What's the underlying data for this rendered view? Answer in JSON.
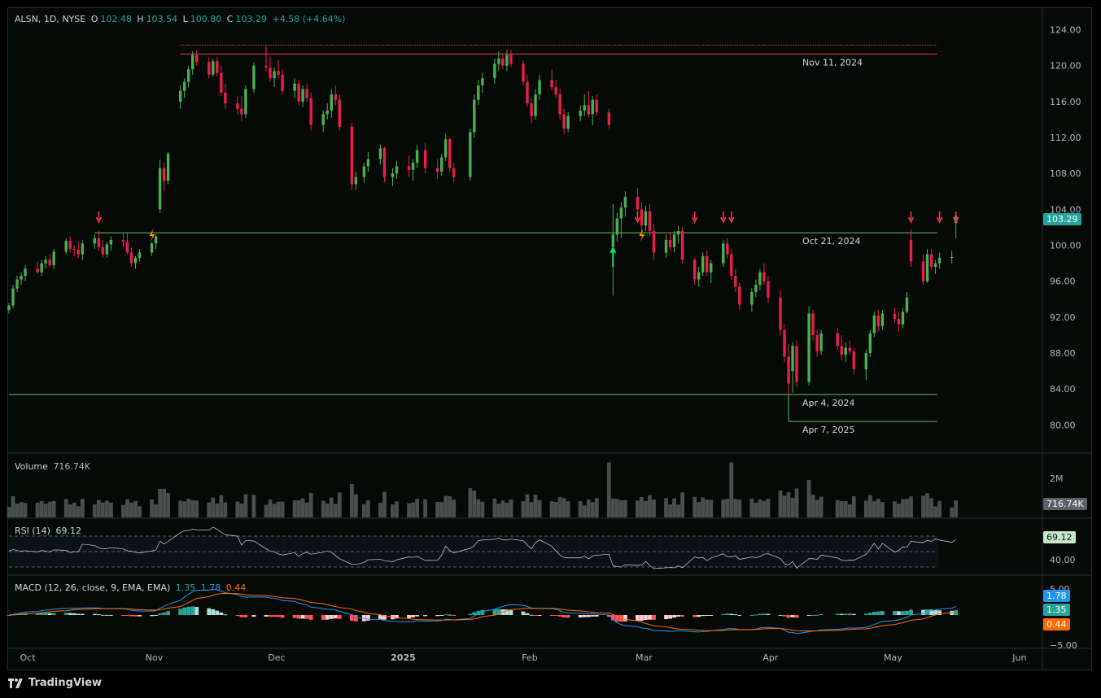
{
  "header": {
    "symbol": "ALSN, 1D, NYSE",
    "o_label": "O",
    "o": "102.48",
    "h_label": "H",
    "h": "103.54",
    "l_label": "L",
    "l": "100.80",
    "c_label": "C",
    "c": "103.29",
    "change": "+4.58 (+4.64%)"
  },
  "price_axis": {
    "ticks": [
      "124.00",
      "120.00",
      "116.00",
      "112.00",
      "108.00",
      "104.00",
      "100.00",
      "96.00",
      "92.00",
      "88.00",
      "84.00",
      "80.00"
    ],
    "current_price": "103.29",
    "current_color": "#26a69a"
  },
  "time_axis": {
    "labels": [
      "Oct",
      "Nov",
      "Dec",
      "2025",
      "Feb",
      "Mar",
      "Apr",
      "May",
      "Jun"
    ]
  },
  "levels": [
    {
      "price": 121.3,
      "label": "Nov 11, 2024",
      "color": "#f23645"
    },
    {
      "price": 101.4,
      "label": "Oct 21, 2024",
      "color": "#66bb6a"
    },
    {
      "price": 83.4,
      "label": "Apr 4, 2024",
      "color": "#66bb6a"
    },
    {
      "price": 80.4,
      "label": "Apr 7, 2025",
      "color": "#66bb6a"
    }
  ],
  "volume": {
    "title": "Volume",
    "value": "716.74K",
    "axis_label": "2M",
    "tag": "716.74K"
  },
  "rsi": {
    "title": "RSI (14)",
    "value": "69.12",
    "tag": "69.12",
    "axis_label": "40.00"
  },
  "macd": {
    "title": "MACD (12, 26, close, 9, EMA, EMA)",
    "hist": "1.35",
    "macd": "1.78",
    "signal": "0.44",
    "axis_top": "5.00",
    "axis_bottom": "−5.00",
    "tag_macd": "1.78",
    "tag_hist": "1.35",
    "tag_signal": "0.44"
  },
  "footer": {
    "brand": "TradingView",
    "logo_icon": "tradingview-logo-icon"
  },
  "colors": {
    "up": "#26a69a",
    "down": "#ef5350",
    "bull": "#4caf50",
    "bear": "#e91e4d"
  },
  "chart_data": {
    "type": "candlestick",
    "symbol": "ALSN",
    "interval": "1D",
    "ylim": [
      77.5,
      125.5
    ],
    "x_range": [
      "2024-09-30",
      "2025-06-10"
    ],
    "candles": [
      [
        "2024-09-30",
        92.8,
        93.6,
        92.4,
        93.3
      ],
      [
        "2024-10-01",
        93.3,
        95.6,
        93.0,
        95.2
      ],
      [
        "2024-10-02",
        95.2,
        96.6,
        94.8,
        96.2
      ],
      [
        "2024-10-03",
        96.2,
        97.0,
        95.6,
        96.6
      ],
      [
        "2024-10-04",
        96.6,
        97.8,
        96.0,
        97.4
      ],
      [
        "2024-10-07",
        97.4,
        98.2,
        96.8,
        97.0
      ],
      [
        "2024-10-08",
        97.0,
        98.4,
        96.6,
        98.0
      ],
      [
        "2024-10-09",
        98.0,
        98.8,
        97.4,
        98.4
      ],
      [
        "2024-10-10",
        98.4,
        99.0,
        97.6,
        97.8
      ],
      [
        "2024-10-11",
        97.8,
        99.6,
        97.4,
        99.3
      ],
      [
        "2024-10-14",
        99.3,
        100.8,
        99.0,
        100.5
      ],
      [
        "2024-10-15",
        100.5,
        101.0,
        99.2,
        99.6
      ],
      [
        "2024-10-16",
        99.6,
        100.0,
        98.8,
        99.5
      ],
      [
        "2024-10-17",
        99.5,
        100.4,
        98.6,
        99.0
      ],
      [
        "2024-10-18",
        99.0,
        100.6,
        98.4,
        100.2
      ],
      [
        "2024-10-21",
        100.2,
        101.2,
        99.6,
        100.8
      ],
      [
        "2024-10-22",
        100.8,
        101.6,
        99.4,
        99.8
      ],
      [
        "2024-10-23",
        99.8,
        100.6,
        98.6,
        99.0
      ],
      [
        "2024-10-24",
        99.0,
        100.4,
        98.6,
        100.1
      ],
      [
        "2024-10-25",
        100.1,
        101.0,
        99.4,
        100.6
      ],
      [
        "2024-10-28",
        100.6,
        101.4,
        99.8,
        100.4
      ],
      [
        "2024-10-29",
        100.4,
        101.5,
        99.0,
        99.2
      ],
      [
        "2024-10-30",
        99.2,
        99.8,
        97.6,
        98.0
      ],
      [
        "2024-10-31",
        98.0,
        98.8,
        97.4,
        98.6
      ],
      [
        "2024-11-01",
        98.6,
        99.6,
        98.2,
        99.2
      ],
      [
        "2024-11-04",
        99.2,
        100.4,
        98.8,
        100.2
      ],
      [
        "2024-11-05",
        100.2,
        101.2,
        99.6,
        101.0
      ],
      [
        "2024-11-06",
        104.0,
        109.5,
        103.6,
        108.6
      ],
      [
        "2024-11-07",
        108.6,
        109.2,
        106.0,
        107.2
      ],
      [
        "2024-11-08",
        107.2,
        110.4,
        106.8,
        110.2
      ],
      [
        "2024-11-11",
        116.0,
        117.8,
        115.2,
        117.2
      ],
      [
        "2024-11-12",
        117.2,
        118.6,
        116.4,
        118.2
      ],
      [
        "2024-11-13",
        118.2,
        120.0,
        117.6,
        119.6
      ],
      [
        "2024-11-14",
        119.6,
        121.6,
        119.0,
        121.2
      ],
      [
        "2024-11-15",
        121.2,
        121.8,
        120.0,
        120.4
      ],
      [
        "2024-11-18",
        120.4,
        121.0,
        118.6,
        119.0
      ],
      [
        "2024-11-19",
        119.0,
        120.8,
        118.8,
        120.5
      ],
      [
        "2024-11-20",
        120.5,
        121.0,
        118.8,
        119.2
      ],
      [
        "2024-11-21",
        119.2,
        120.0,
        116.6,
        117.0
      ],
      [
        "2024-11-22",
        117.0,
        118.0,
        115.2,
        115.8
      ],
      [
        "2024-11-25",
        115.8,
        116.6,
        114.6,
        115.2
      ],
      [
        "2024-11-26",
        115.2,
        116.6,
        113.8,
        114.6
      ],
      [
        "2024-11-27",
        114.6,
        117.8,
        114.2,
        117.4
      ],
      [
        "2024-11-29",
        117.4,
        120.4,
        117.0,
        120.0
      ],
      [
        "2024-12-02",
        120.0,
        122.2,
        119.4,
        119.8
      ],
      [
        "2024-12-03",
        119.8,
        121.0,
        118.2,
        118.6
      ],
      [
        "2024-12-04",
        118.6,
        119.8,
        117.6,
        119.4
      ],
      [
        "2024-12-05",
        119.4,
        120.6,
        118.6,
        119.0
      ],
      [
        "2024-12-06",
        119.0,
        119.6,
        116.8,
        117.2
      ],
      [
        "2024-12-09",
        117.2,
        118.6,
        116.4,
        118.0
      ],
      [
        "2024-12-10",
        118.0,
        118.4,
        115.6,
        116.0
      ],
      [
        "2024-12-11",
        116.0,
        117.8,
        115.4,
        117.4
      ],
      [
        "2024-12-12",
        117.4,
        118.0,
        116.0,
        116.4
      ],
      [
        "2024-12-13",
        116.4,
        117.0,
        112.8,
        113.4
      ],
      [
        "2024-12-16",
        113.4,
        115.0,
        112.6,
        114.6
      ],
      [
        "2024-12-17",
        114.6,
        115.8,
        114.0,
        115.0
      ],
      [
        "2024-12-18",
        115.0,
        117.4,
        114.2,
        116.8
      ],
      [
        "2024-12-19",
        116.8,
        117.8,
        115.6,
        116.2
      ],
      [
        "2024-12-20",
        116.2,
        116.8,
        112.8,
        113.2
      ],
      [
        "2024-12-23",
        113.2,
        113.6,
        106.2,
        106.8
      ],
      [
        "2024-12-24",
        106.8,
        108.2,
        106.2,
        107.6
      ],
      [
        "2024-12-26",
        107.6,
        109.2,
        107.0,
        108.8
      ],
      [
        "2024-12-27",
        108.8,
        110.4,
        108.2,
        109.6
      ],
      [
        "2024-12-30",
        109.6,
        111.2,
        109.0,
        110.8
      ],
      [
        "2024-12-31",
        110.8,
        111.0,
        107.0,
        107.6
      ],
      [
        "2025-01-02",
        107.6,
        108.6,
        106.6,
        108.0
      ],
      [
        "2025-01-03",
        108.0,
        109.4,
        107.4,
        108.8
      ],
      [
        "2025-01-06",
        108.8,
        110.0,
        107.6,
        108.4
      ],
      [
        "2025-01-07",
        108.4,
        109.6,
        107.2,
        109.2
      ],
      [
        "2025-01-08",
        109.2,
        111.2,
        108.6,
        110.6
      ],
      [
        "2025-01-10",
        110.6,
        111.4,
        108.0,
        108.6
      ],
      [
        "2025-01-13",
        108.6,
        109.6,
        107.4,
        108.2
      ],
      [
        "2025-01-14",
        108.2,
        110.2,
        107.8,
        109.8
      ],
      [
        "2025-01-15",
        109.8,
        112.4,
        109.4,
        111.8
      ],
      [
        "2025-01-16",
        111.8,
        112.0,
        108.2,
        108.6
      ],
      [
        "2025-01-17",
        108.6,
        109.2,
        107.0,
        107.6
      ],
      [
        "2025-01-21",
        107.6,
        113.0,
        107.2,
        112.6
      ],
      [
        "2025-01-22",
        112.6,
        116.8,
        112.0,
        116.2
      ],
      [
        "2025-01-23",
        116.2,
        118.4,
        115.6,
        117.8
      ],
      [
        "2025-01-24",
        117.8,
        119.2,
        117.0,
        118.6
      ],
      [
        "2025-01-27",
        118.6,
        120.8,
        118.0,
        120.2
      ],
      [
        "2025-01-28",
        120.2,
        121.6,
        119.4,
        120.8
      ],
      [
        "2025-01-29",
        120.8,
        121.4,
        119.6,
        120.0
      ],
      [
        "2025-01-30",
        120.0,
        121.8,
        119.4,
        121.2
      ],
      [
        "2025-01-31",
        121.2,
        121.8,
        119.8,
        120.2
      ],
      [
        "2025-02-03",
        120.2,
        120.6,
        117.8,
        118.2
      ],
      [
        "2025-02-04",
        118.2,
        119.0,
        115.4,
        115.8
      ],
      [
        "2025-02-05",
        115.8,
        116.4,
        113.6,
        114.4
      ],
      [
        "2025-02-06",
        114.4,
        117.4,
        114.0,
        116.8
      ],
      [
        "2025-02-07",
        116.8,
        119.0,
        116.2,
        118.4
      ],
      [
        "2025-02-10",
        118.4,
        119.6,
        117.2,
        117.6
      ],
      [
        "2025-02-11",
        117.6,
        118.4,
        116.4,
        116.8
      ],
      [
        "2025-02-12",
        116.8,
        117.4,
        114.0,
        114.6
      ],
      [
        "2025-02-13",
        114.6,
        115.2,
        112.4,
        113.0
      ],
      [
        "2025-02-14",
        113.0,
        114.8,
        112.6,
        114.4
      ],
      [
        "2025-02-17",
        114.4,
        115.6,
        113.8,
        115.0
      ],
      [
        "2025-02-18",
        115.0,
        116.8,
        114.4,
        115.6
      ],
      [
        "2025-02-19",
        115.6,
        117.2,
        114.2,
        114.6
      ],
      [
        "2025-02-20",
        114.6,
        116.6,
        113.4,
        116.2
      ],
      [
        "2025-02-21",
        116.2,
        116.8,
        114.4,
        114.8
      ],
      [
        "2025-02-24",
        114.8,
        115.2,
        113.0,
        113.4
      ],
      [
        "2025-02-25",
        99.8,
        104.6,
        94.4,
        101.2
      ],
      [
        "2025-02-26",
        101.2,
        103.6,
        100.4,
        103.0
      ],
      [
        "2025-02-27",
        103.0,
        104.8,
        100.8,
        104.2
      ],
      [
        "2025-02-28",
        104.2,
        106.0,
        103.2,
        105.4
      ],
      [
        "2025-03-03",
        105.4,
        106.4,
        103.4,
        104.0
      ],
      [
        "2025-03-04",
        104.0,
        104.8,
        101.4,
        102.2
      ],
      [
        "2025-03-05",
        102.2,
        104.4,
        101.6,
        103.8
      ],
      [
        "2025-03-06",
        103.8,
        104.6,
        101.0,
        101.6
      ],
      [
        "2025-03-07",
        101.6,
        102.4,
        98.4,
        99.2
      ],
      [
        "2025-03-10",
        99.2,
        101.2,
        98.6,
        100.6
      ],
      [
        "2025-03-11",
        100.6,
        101.4,
        99.4,
        99.8
      ],
      [
        "2025-03-12",
        99.8,
        101.6,
        99.2,
        101.2
      ],
      [
        "2025-03-13",
        101.2,
        102.2,
        100.2,
        101.6
      ],
      [
        "2025-03-14",
        101.6,
        102.0,
        98.0,
        98.4
      ],
      [
        "2025-03-17",
        98.4,
        98.6,
        95.6,
        96.2
      ],
      [
        "2025-03-18",
        96.2,
        97.6,
        95.4,
        97.0
      ],
      [
        "2025-03-19",
        97.0,
        99.2,
        96.6,
        98.8
      ],
      [
        "2025-03-20",
        98.8,
        99.4,
        96.6,
        97.0
      ],
      [
        "2025-03-21",
        97.0,
        98.4,
        95.8,
        98.0
      ],
      [
        "2025-03-24",
        98.0,
        100.6,
        97.6,
        100.2
      ],
      [
        "2025-03-25",
        100.2,
        100.8,
        98.6,
        99.0
      ],
      [
        "2025-03-26",
        99.0,
        99.6,
        96.2,
        96.6
      ],
      [
        "2025-03-27",
        96.6,
        97.4,
        94.8,
        95.4
      ],
      [
        "2025-03-28",
        95.4,
        95.8,
        92.8,
        93.4
      ],
      [
        "2025-03-31",
        93.4,
        95.2,
        92.6,
        94.8
      ],
      [
        "2025-04-01",
        94.8,
        96.2,
        94.2,
        95.6
      ],
      [
        "2025-04-02",
        95.6,
        97.4,
        95.0,
        97.0
      ],
      [
        "2025-04-03",
        97.0,
        98.0,
        95.6,
        96.0
      ],
      [
        "2025-04-04",
        96.0,
        96.6,
        93.6,
        94.2
      ],
      [
        "2025-04-07",
        94.2,
        95.0,
        90.0,
        90.6
      ],
      [
        "2025-04-08",
        90.6,
        91.2,
        87.0,
        87.6
      ],
      [
        "2025-04-09",
        87.6,
        89.0,
        83.4,
        84.6
      ],
      [
        "2025-04-10",
        86.0,
        89.2,
        83.6,
        88.8
      ],
      [
        "2025-04-11",
        88.8,
        89.4,
        84.2,
        84.8
      ],
      [
        "2025-04-14",
        84.8,
        93.2,
        84.4,
        92.4
      ],
      [
        "2025-04-15",
        92.4,
        92.8,
        89.4,
        90.0
      ],
      [
        "2025-04-16",
        90.0,
        90.6,
        87.6,
        88.2
      ],
      [
        "2025-04-17",
        88.2,
        90.6,
        87.8,
        90.2
      ],
      [
        "2025-04-21",
        90.2,
        90.8,
        88.4,
        88.8
      ],
      [
        "2025-04-22",
        88.8,
        90.0,
        87.2,
        87.8
      ],
      [
        "2025-04-23",
        87.8,
        89.2,
        87.0,
        88.6
      ],
      [
        "2025-04-24",
        88.6,
        89.4,
        87.8,
        88.2
      ],
      [
        "2025-04-25",
        88.2,
        88.6,
        85.6,
        86.2
      ],
      [
        "2025-04-28",
        86.2,
        88.4,
        85.0,
        88.0
      ],
      [
        "2025-04-29",
        88.0,
        90.6,
        87.6,
        90.2
      ],
      [
        "2025-04-30",
        90.2,
        92.6,
        89.8,
        92.2
      ],
      [
        "2025-05-01",
        92.2,
        92.8,
        90.4,
        91.0
      ],
      [
        "2025-05-02",
        91.0,
        92.8,
        90.6,
        92.4
      ],
      [
        "2025-05-05",
        92.4,
        93.0,
        91.4,
        91.8
      ],
      [
        "2025-05-06",
        91.8,
        92.6,
        90.4,
        91.2
      ],
      [
        "2025-05-07",
        91.2,
        93.0,
        90.8,
        92.6
      ],
      [
        "2025-05-08",
        92.6,
        94.8,
        92.4,
        94.2
      ],
      [
        "2025-05-09",
        100.6,
        101.8,
        97.6,
        98.2
      ],
      [
        "2025-05-12",
        98.2,
        99.0,
        95.6,
        96.0
      ],
      [
        "2025-05-13",
        96.0,
        99.6,
        95.8,
        99.0
      ],
      [
        "2025-05-14",
        99.0,
        99.6,
        97.2,
        97.6
      ],
      [
        "2025-05-15",
        97.6,
        98.4,
        96.8,
        98.0
      ],
      [
        "2025-05-16",
        98.0,
        99.2,
        97.4,
        98.6
      ],
      [
        "2025-05-19",
        98.6,
        99.4,
        98.0,
        98.7
      ],
      [
        "2025-05-20",
        102.48,
        103.54,
        100.8,
        103.29
      ]
    ]
  }
}
